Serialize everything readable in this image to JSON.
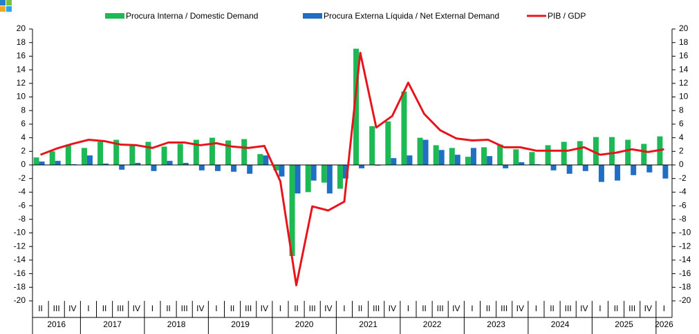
{
  "chart_data": {
    "type": "bar_line",
    "categories": [
      "II",
      "III",
      "IV",
      "I",
      "II",
      "III",
      "IV",
      "I",
      "II",
      "III",
      "IV",
      "I",
      "II",
      "III",
      "IV",
      "I",
      "II",
      "III",
      "IV",
      "I",
      "II",
      "III",
      "IV",
      "I",
      "II",
      "III",
      "IV",
      "I",
      "II",
      "III",
      "IV",
      "I",
      "II",
      "III",
      "IV",
      "I",
      "II",
      "III",
      "IV",
      "I"
    ],
    "years": [
      "2016",
      "2017",
      "2018",
      "2019",
      "2020",
      "2021",
      "2022",
      "2023",
      "2024",
      "2025",
      "2026"
    ],
    "series": [
      {
        "name": "Procura Interna / Domestic Demand",
        "color": "#1db954",
        "kind": "bar",
        "values": [
          1.1,
          2.0,
          3.0,
          2.5,
          3.4,
          3.7,
          2.8,
          3.4,
          2.7,
          3.1,
          3.7,
          4.0,
          3.6,
          3.8,
          1.6,
          -0.8,
          -13.4,
          -4.0,
          -2.6,
          -3.5,
          17.1,
          5.7,
          6.4,
          10.8,
          4.0,
          2.9,
          2.5,
          1.2,
          2.6,
          3.0,
          2.3,
          1.9,
          2.9,
          3.4,
          3.5,
          4.1,
          4.1,
          3.7,
          3.1,
          4.2
        ]
      },
      {
        "name": "Procura Externa Líquida / Net External Demand",
        "color": "#1f6fc5",
        "kind": "bar",
        "values": [
          0.5,
          0.6,
          0.1,
          1.4,
          0.2,
          -0.7,
          0.3,
          -0.9,
          0.6,
          0.3,
          -0.8,
          -0.9,
          -1.0,
          -1.3,
          1.4,
          -1.7,
          -4.2,
          -2.3,
          -4.2,
          -2.0,
          -0.5,
          -0.1,
          1.0,
          1.4,
          3.7,
          2.2,
          1.5,
          2.5,
          1.3,
          -0.5,
          0.4,
          0.1,
          -0.8,
          -1.3,
          -0.9,
          -2.5,
          -2.3,
          -1.5,
          -1.1,
          -2.0
        ]
      },
      {
        "name": "PIB / GDP",
        "color": "#e8141c",
        "kind": "line",
        "values": [
          1.5,
          2.4,
          3.1,
          3.7,
          3.5,
          3.0,
          2.9,
          2.5,
          3.3,
          3.3,
          2.9,
          3.2,
          2.7,
          2.5,
          2.8,
          -2.4,
          -17.7,
          -6.1,
          -6.7,
          -5.4,
          16.5,
          5.5,
          7.2,
          12.1,
          7.5,
          5.1,
          3.9,
          3.6,
          3.7,
          2.6,
          2.6,
          2.1,
          2.1,
          2.1,
          2.6,
          1.5,
          1.8,
          2.3,
          1.9,
          2.3
        ]
      }
    ],
    "ylim": [
      -20,
      20
    ],
    "yticks": [
      -20,
      -18,
      -16,
      -14,
      -12,
      -10,
      -8,
      -6,
      -4,
      -2,
      0,
      2,
      4,
      6,
      8,
      10,
      12,
      14,
      16,
      18,
      20
    ]
  }
}
